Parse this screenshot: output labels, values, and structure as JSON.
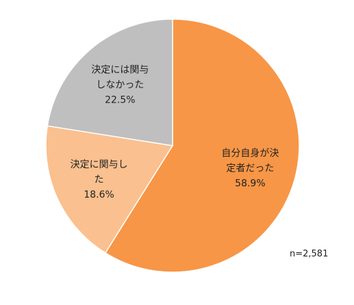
{
  "chart_data": {
    "type": "pie",
    "slices": [
      {
        "label_lines": [
          "自分自身が決",
          "定者だった"
        ],
        "value": 58.9,
        "value_label": "58.9%",
        "color": "#f79646"
      },
      {
        "label_lines": [
          "決定に関与し",
          "た"
        ],
        "value": 18.6,
        "value_label": "18.6%",
        "color": "#fac08f"
      },
      {
        "label_lines": [
          "決定には関与",
          "しなかった"
        ],
        "value": 22.5,
        "value_label": "22.5%",
        "color": "#bfbfbf"
      }
    ],
    "start_angle_deg": 0,
    "direction": "clockwise",
    "legend": "none",
    "sample_size_label": "n=2,581"
  }
}
